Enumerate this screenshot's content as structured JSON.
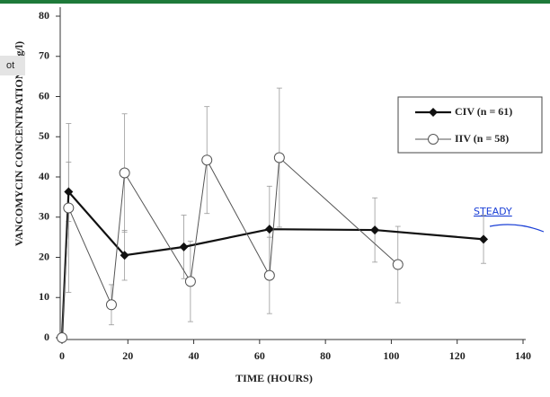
{
  "chart_data": {
    "type": "line",
    "xlabel": "TIME (HOURS)",
    "ylabel": "VANCOMYCIN CONCENTRATION (mg/l)",
    "xlim": [
      0,
      140
    ],
    "xticks": [
      0,
      20,
      40,
      60,
      80,
      100,
      120,
      140
    ],
    "ylim": [
      0,
      80
    ],
    "yticks": [
      0,
      10,
      20,
      30,
      40,
      50,
      60,
      70,
      80
    ],
    "series": [
      {
        "name": "CIV (n = 61)",
        "color": "#111111",
        "marker": "diamond",
        "x": [
          0,
          2,
          19,
          37,
          63,
          95,
          128
        ],
        "values": [
          0,
          36.3,
          20.5,
          22.6,
          27,
          26.8,
          24.5
        ],
        "errors": [
          0,
          7.4,
          6.2,
          7.9,
          10.7,
          8,
          6
        ]
      },
      {
        "name": "IIV (n = 58)",
        "color": "#555555",
        "marker": "circle",
        "x": [
          0,
          2,
          15,
          19,
          39,
          44,
          63,
          66,
          102
        ],
        "values": [
          0,
          32.3,
          8.2,
          41,
          14,
          44.2,
          15.5,
          44.8,
          18.2
        ],
        "errors": [
          0,
          21,
          5,
          14.7,
          10,
          13.3,
          9.5,
          17.3,
          9.5
        ]
      }
    ],
    "annotation": "STEADY",
    "overlay_tab": "ot"
  }
}
